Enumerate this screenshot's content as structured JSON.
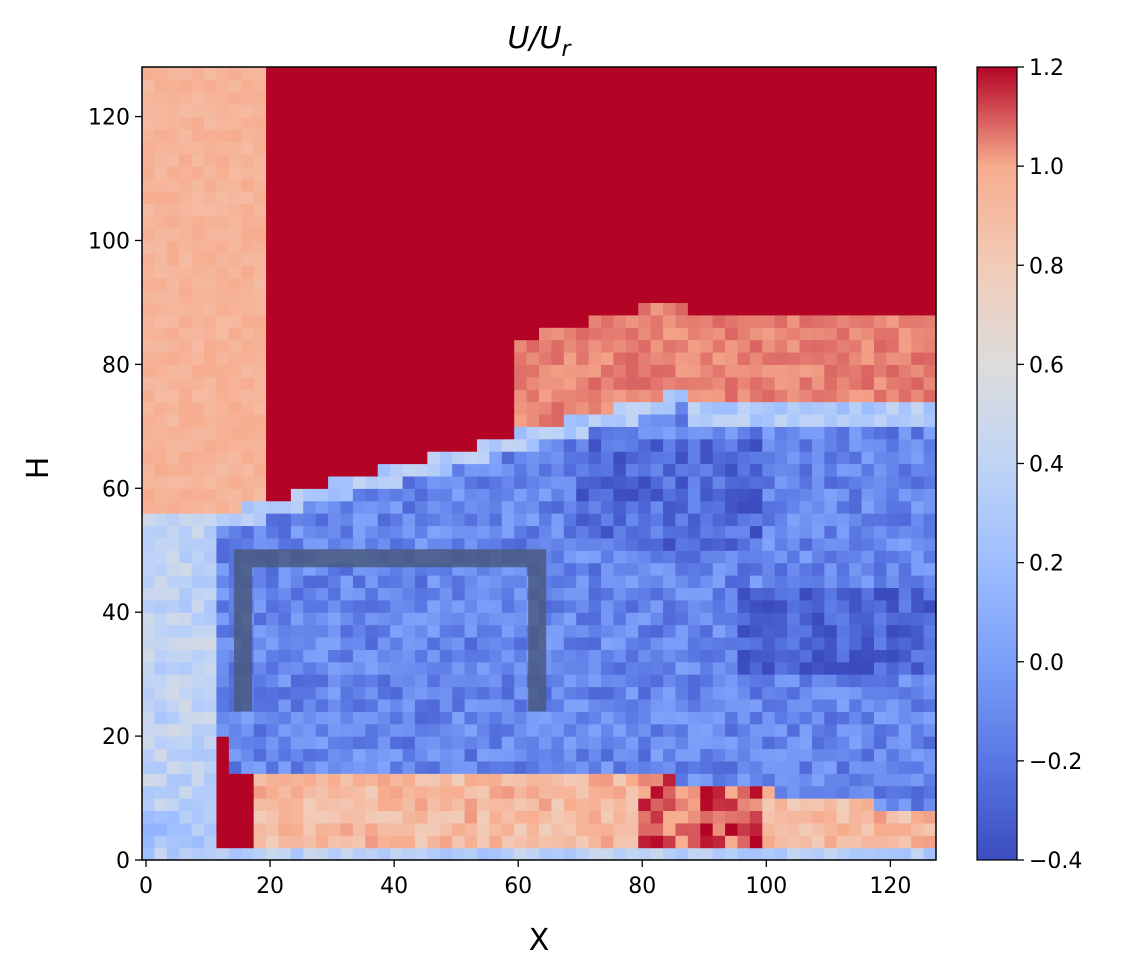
{
  "chart_data": {
    "type": "heatmap",
    "title_parts": {
      "main": "U/U",
      "sub": "r"
    },
    "xlabel": "X",
    "ylabel": "H",
    "xlim": [
      0,
      128
    ],
    "ylim": [
      0,
      128
    ],
    "x_ticks": [
      0,
      20,
      40,
      60,
      80,
      100,
      120
    ],
    "y_ticks": [
      0,
      20,
      40,
      60,
      80,
      100,
      120
    ],
    "colormap": "coolwarm",
    "clim": [
      -0.4,
      1.2
    ],
    "colorbar_ticks": [
      "1.2",
      "1.0",
      "0.8",
      "0.6",
      "0.4",
      "0.2",
      "0.0",
      "−0.2",
      "−0.4"
    ],
    "colorbar_values": [
      1.2,
      1.0,
      0.8,
      0.6,
      0.4,
      0.2,
      0.0,
      -0.2,
      -0.4
    ],
    "field_description": {
      "freestream_value": 1.2,
      "wake_region": {
        "x": [
          8,
          128
        ],
        "y": [
          15,
          75
        ],
        "value": -0.1
      },
      "near_ground_jet": {
        "x": [
          20,
          128
        ],
        "y": [
          3,
          15
        ],
        "value": 0.95
      }
    },
    "overlay_shape": {
      "type": "open-rectangle",
      "x": [
        15,
        65
      ],
      "y": [
        24,
        50
      ],
      "color": "#4a5a80"
    }
  }
}
